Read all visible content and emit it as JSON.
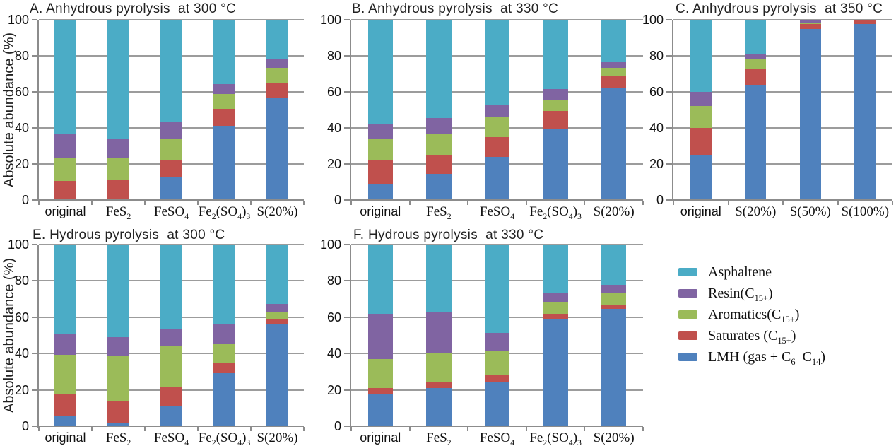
{
  "figure": {
    "ylabel": "Absolute abundance (%)",
    "colors": {
      "asphaltene": "#4BACC6",
      "resin": "#8064A2",
      "aromatics": "#9BBB59",
      "saturates": "#C0504D",
      "lmh": "#4F81BD",
      "gridline": "#9c9c9c",
      "axis": "#8c8c8c"
    }
  },
  "legend": {
    "items": [
      {
        "label": "Asphaltene",
        "color": "#4BACC6"
      },
      {
        "label": "Resin(C~15+~)",
        "color": "#8064A2"
      },
      {
        "label": "Aromatics(C~15+~)",
        "color": "#9BBB59"
      },
      {
        "label": "Saturates (C~15+~)",
        "color": "#C0504D"
      },
      {
        "label": "LMH (gas + C~6~–C~14~)",
        "color": "#4F81BD"
      }
    ]
  },
  "chart_data": [
    {
      "id": "A",
      "type": "bar",
      "stacked": true,
      "title": "A. Anhydrous pyrolysis  at 300 °C",
      "ylabel": "Absolute abundance (%)",
      "ylim": [
        0,
        100
      ],
      "yticks": [
        0,
        20,
        40,
        60,
        80,
        100
      ],
      "categories": [
        {
          "label": "original",
          "serif": false
        },
        {
          "label": "FeS~2~",
          "serif": true
        },
        {
          "label": "FeSO~4~",
          "serif": true
        },
        {
          "label": "Fe~2~(SO~4~)~3~",
          "serif": true
        },
        {
          "label": "S(20%)",
          "serif": true
        }
      ],
      "series": [
        {
          "name": "LMH (gas + C~6~–C~14~)",
          "color": "#4F81BD",
          "values": [
            0.5,
            0.5,
            13,
            41,
            57
          ]
        },
        {
          "name": "Saturates (C~15+~)",
          "color": "#C0504D",
          "values": [
            10,
            10.5,
            9,
            9.5,
            8
          ]
        },
        {
          "name": "Aromatics(C~15+~)",
          "color": "#9BBB59",
          "values": [
            13,
            12.5,
            12,
            8.5,
            8.5
          ]
        },
        {
          "name": "Resin(C~15+~)",
          "color": "#8064A2",
          "values": [
            13.5,
            10.5,
            9,
            5.5,
            4.5
          ]
        },
        {
          "name": "Asphaltene",
          "color": "#4BACC6",
          "values": [
            63,
            66,
            57,
            35.5,
            22
          ]
        }
      ]
    },
    {
      "id": "B",
      "type": "bar",
      "stacked": true,
      "title": "B. Anhydrous pyrolysis  at 330 °C",
      "ylim": [
        0,
        100
      ],
      "yticks": [
        0,
        20,
        40,
        60,
        80,
        100
      ],
      "categories": [
        {
          "label": "original",
          "serif": false
        },
        {
          "label": "FeS~2~",
          "serif": true
        },
        {
          "label": "FeSO~4~",
          "serif": true
        },
        {
          "label": "Fe~2~(SO~4~)~3~",
          "serif": true
        },
        {
          "label": "S(20%)",
          "serif": true
        }
      ],
      "series": [
        {
          "name": "LMH (gas + C~6~–C~14~)",
          "color": "#4F81BD",
          "values": [
            9,
            14.5,
            24,
            39.5,
            62.5
          ]
        },
        {
          "name": "Saturates (C~15+~)",
          "color": "#C0504D",
          "values": [
            13,
            10.5,
            11,
            10,
            6.5
          ]
        },
        {
          "name": "Aromatics(C~15+~)",
          "color": "#9BBB59",
          "values": [
            12,
            12,
            11,
            6,
            4.5
          ]
        },
        {
          "name": "Resin(C~15+~)",
          "color": "#8064A2",
          "values": [
            8,
            8.5,
            7,
            6,
            3
          ]
        },
        {
          "name": "Asphaltene",
          "color": "#4BACC6",
          "values": [
            58,
            54.5,
            47,
            38.5,
            23.5
          ]
        }
      ]
    },
    {
      "id": "C",
      "type": "bar",
      "stacked": true,
      "title": "C. Anhydrous pyrolysis  at 350 °C",
      "ylim": [
        0,
        100
      ],
      "yticks": [
        0,
        20,
        40,
        60,
        80,
        100
      ],
      "categories": [
        {
          "label": "original",
          "serif": false
        },
        {
          "label": "S(20%)",
          "serif": true
        },
        {
          "label": "S(50%)",
          "serif": true
        },
        {
          "label": "S(100%)",
          "serif": true
        }
      ],
      "series": [
        {
          "name": "LMH (gas + C~6~–C~14~)",
          "color": "#4F81BD",
          "values": [
            25,
            64,
            95,
            97.5
          ]
        },
        {
          "name": "Saturates (C~15+~)",
          "color": "#C0504D",
          "values": [
            15,
            9,
            2.5,
            2
          ]
        },
        {
          "name": "Aromatics(C~15+~)",
          "color": "#9BBB59",
          "values": [
            12,
            5.5,
            1,
            0.3
          ]
        },
        {
          "name": "Resin(C~15+~)",
          "color": "#8064A2",
          "values": [
            8,
            2.5,
            1.5,
            0.2
          ]
        },
        {
          "name": "Asphaltene",
          "color": "#4BACC6",
          "values": [
            40,
            19,
            0,
            0
          ]
        }
      ]
    },
    {
      "id": "E",
      "type": "bar",
      "stacked": true,
      "title": "E. Hydrous pyrolysis  at 300 °C",
      "ylabel": "Absolute abundance (%)",
      "ylim": [
        0,
        100
      ],
      "yticks": [
        0,
        20,
        40,
        60,
        80,
        100
      ],
      "categories": [
        {
          "label": "original",
          "serif": false
        },
        {
          "label": "FeS~2~",
          "serif": true
        },
        {
          "label": "FeSO~4~",
          "serif": true
        },
        {
          "label": "Fe~2~(SO~4~)~3~",
          "serif": true
        },
        {
          "label": "S(20%)",
          "serif": true
        }
      ],
      "series": [
        {
          "name": "LMH (gas + C~6~–C~14~)",
          "color": "#4F81BD",
          "values": [
            5.5,
            1.5,
            11,
            29,
            56
          ]
        },
        {
          "name": "Saturates (C~15+~)",
          "color": "#C0504D",
          "values": [
            12,
            12,
            10.5,
            5.5,
            3
          ]
        },
        {
          "name": "Aromatics(C~15+~)",
          "color": "#9BBB59",
          "values": [
            22,
            25,
            22.5,
            10.5,
            4
          ]
        },
        {
          "name": "Resin(C~15+~)",
          "color": "#8064A2",
          "values": [
            11.5,
            10.5,
            9.5,
            11,
            4.5
          ]
        },
        {
          "name": "Asphaltene",
          "color": "#4BACC6",
          "values": [
            49,
            51,
            46.5,
            44,
            32.5
          ]
        }
      ]
    },
    {
      "id": "F",
      "type": "bar",
      "stacked": true,
      "title": "F. Hydrous pyrolysis  at 330 °C",
      "ylim": [
        0,
        100
      ],
      "yticks": [
        0,
        20,
        40,
        60,
        80,
        100
      ],
      "categories": [
        {
          "label": "original",
          "serif": false
        },
        {
          "label": "FeS~2~",
          "serif": true
        },
        {
          "label": "FeSO~4~",
          "serif": true
        },
        {
          "label": "Fe~2~(SO~4~)~3~",
          "serif": true
        },
        {
          "label": "S(20%)",
          "serif": true
        }
      ],
      "series": [
        {
          "name": "LMH (gas + C~6~–C~14~)",
          "color": "#4F81BD",
          "values": [
            18,
            21,
            24.5,
            59,
            64.5
          ]
        },
        {
          "name": "Saturates (C~15+~)",
          "color": "#C0504D",
          "values": [
            3,
            3.5,
            3.5,
            3,
            2.5
          ]
        },
        {
          "name": "Aromatics(C~15+~)",
          "color": "#9BBB59",
          "values": [
            16,
            16,
            13.5,
            6.5,
            6.5
          ]
        },
        {
          "name": "Resin(C~15+~)",
          "color": "#8064A2",
          "values": [
            25,
            22.5,
            10,
            4.5,
            4.5
          ]
        },
        {
          "name": "Asphaltene",
          "color": "#4BACC6",
          "values": [
            38,
            37,
            48.5,
            27,
            22
          ]
        }
      ]
    }
  ]
}
